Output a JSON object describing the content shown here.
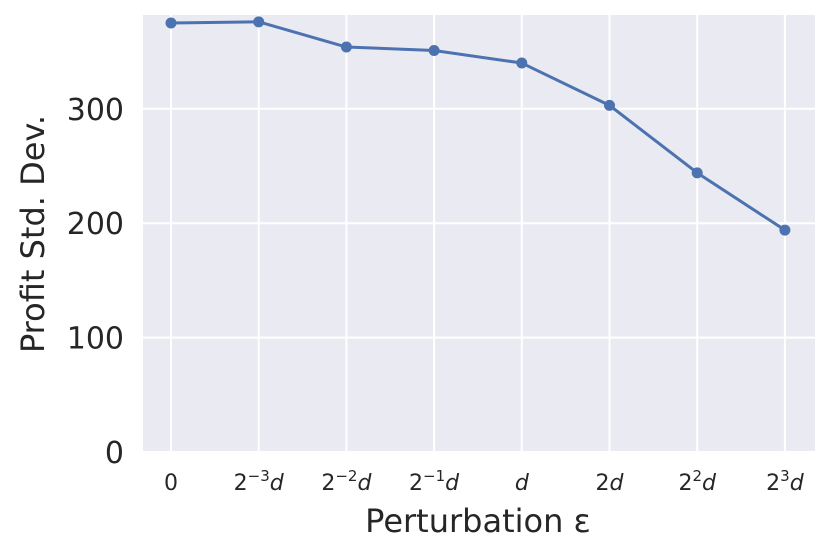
{
  "chart_data": {
    "type": "line",
    "xlabel": "Perturbation ε",
    "ylabel": "Profit Std. Dev.",
    "categories": [
      {
        "base": "0",
        "sup": "",
        "tail": ""
      },
      {
        "base": "2",
        "sup": "−3",
        "tail": "d"
      },
      {
        "base": "2",
        "sup": "−2",
        "tail": "d"
      },
      {
        "base": "2",
        "sup": "−1",
        "tail": "d"
      },
      {
        "base": "",
        "sup": "",
        "tail": "d"
      },
      {
        "base": "2",
        "sup": "",
        "tail": "d"
      },
      {
        "base": "2",
        "sup": "2",
        "tail": "d"
      },
      {
        "base": "2",
        "sup": "3",
        "tail": "d"
      }
    ],
    "values": [
      375,
      376,
      354,
      351,
      340,
      303,
      244,
      194
    ],
    "yticks": [
      0,
      100,
      200,
      300
    ],
    "ylim": [
      0,
      382
    ],
    "grid": true,
    "colors": {
      "line": "#4c72b0",
      "plot_bg": "#eaeaf2",
      "grid": "#ffffff"
    }
  }
}
